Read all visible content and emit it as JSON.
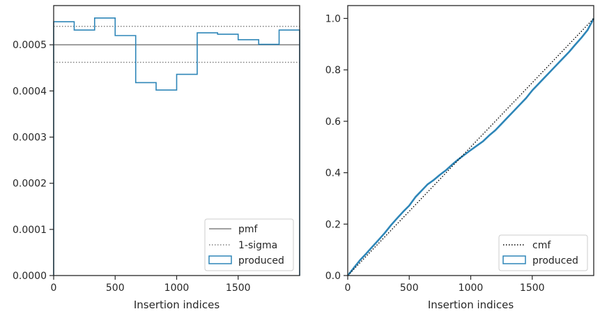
{
  "chart_data": [
    {
      "type": "step",
      "title": "",
      "xlabel": "Insertion indices",
      "ylabel": "",
      "xlim": [
        0,
        2000
      ],
      "ylim": [
        0,
        0.000585
      ],
      "xticks": [
        0,
        500,
        1000,
        1500
      ],
      "xtick_labels": [
        "0",
        "500",
        "1000",
        "1500"
      ],
      "yticks": [
        0,
        0.0001,
        0.0002,
        0.0003,
        0.0004,
        0.0005
      ],
      "ytick_labels": [
        "0.0000",
        "0.0001",
        "0.0002",
        "0.0003",
        "0.0004",
        "0.0005"
      ],
      "legend_position": "lower-right",
      "series": [
        {
          "name": "pmf",
          "style": "solid",
          "color": "#808080",
          "y": 0.0005
        },
        {
          "name": "1-sigma",
          "style": "dotted",
          "color": "#808080",
          "y_values": [
            0.00054,
            0.000462
          ]
        },
        {
          "name": "produced",
          "style": "step",
          "color": "#2e86b8",
          "bin_edges": [
            0,
            167,
            333,
            500,
            667,
            833,
            1000,
            1167,
            1333,
            1500,
            1667,
            1833,
            2000
          ],
          "values": [
            0.00055,
            0.000532,
            0.000558,
            0.00052,
            0.000418,
            0.000402,
            0.000436,
            0.000526,
            0.000523,
            0.000511,
            0.000501,
            0.000532
          ]
        }
      ]
    },
    {
      "type": "line",
      "title": "",
      "xlabel": "Insertion indices",
      "ylabel": "",
      "xlim": [
        0,
        2000
      ],
      "ylim": [
        0,
        1.05
      ],
      "xticks": [
        0,
        500,
        1000,
        1500
      ],
      "xtick_labels": [
        "0",
        "500",
        "1000",
        "1500"
      ],
      "yticks": [
        0,
        0.2,
        0.4,
        0.6,
        0.8,
        1.0
      ],
      "ytick_labels": [
        "0.0",
        "0.2",
        "0.4",
        "0.6",
        "0.8",
        "1.0"
      ],
      "legend_position": "lower-right",
      "series": [
        {
          "name": "cmf",
          "style": "dotted",
          "color": "#000000",
          "x": [
            0,
            2000
          ],
          "y": [
            0,
            1.0
          ]
        },
        {
          "name": "produced",
          "style": "solid",
          "color": "#2e86b8",
          "x": [
            0,
            50,
            100,
            150,
            200,
            250,
            300,
            350,
            400,
            450,
            500,
            550,
            600,
            650,
            700,
            750,
            800,
            850,
            900,
            950,
            1000,
            1050,
            1100,
            1150,
            1200,
            1250,
            1300,
            1350,
            1400,
            1450,
            1500,
            1550,
            1600,
            1650,
            1700,
            1750,
            1800,
            1850,
            1900,
            1950,
            2000
          ],
          "y": [
            0,
            0.03,
            0.06,
            0.085,
            0.112,
            0.138,
            0.165,
            0.195,
            0.222,
            0.248,
            0.272,
            0.305,
            0.33,
            0.355,
            0.372,
            0.392,
            0.41,
            0.432,
            0.452,
            0.47,
            0.488,
            0.505,
            0.522,
            0.545,
            0.565,
            0.59,
            0.615,
            0.64,
            0.665,
            0.69,
            0.72,
            0.745,
            0.77,
            0.795,
            0.82,
            0.845,
            0.87,
            0.898,
            0.925,
            0.955,
            1.0
          ]
        }
      ]
    }
  ]
}
